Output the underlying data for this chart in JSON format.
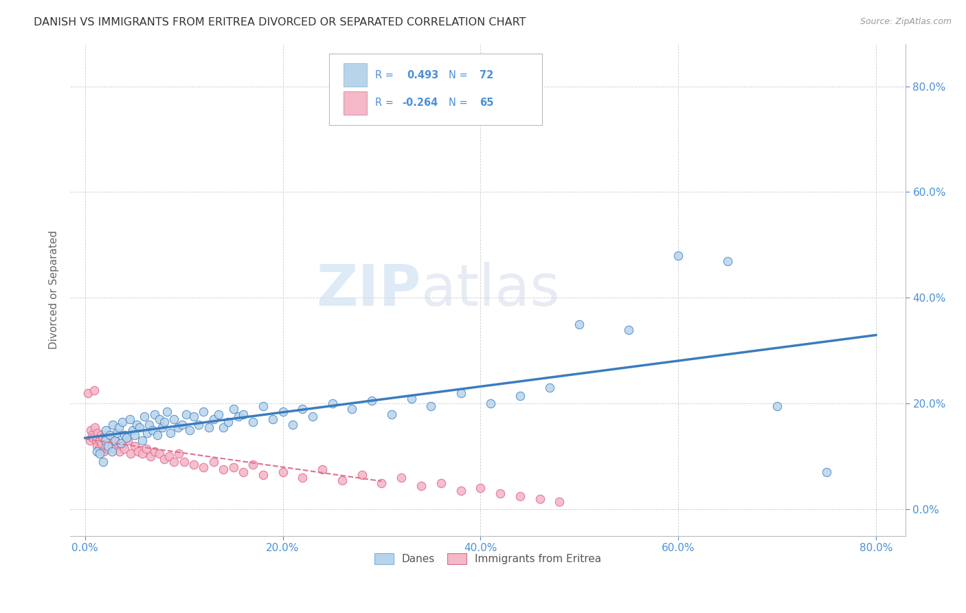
{
  "title": "DANISH VS IMMIGRANTS FROM ERITREA DIVORCED OR SEPARATED CORRELATION CHART",
  "source": "Source: ZipAtlas.com",
  "ylabel": "Divorced or Separated",
  "xlabel_tick_vals": [
    0,
    20,
    40,
    60,
    80
  ],
  "ylabel_tick_vals": [
    0,
    20,
    40,
    60,
    80
  ],
  "xlim": [
    -1.5,
    83
  ],
  "ylim": [
    -5,
    88
  ],
  "danes_R": 0.493,
  "danes_N": 72,
  "eritrea_R": -0.264,
  "eritrea_N": 65,
  "legend_label_danes": "Danes",
  "legend_label_eritrea": "Immigrants from Eritrea",
  "danes_color": "#b8d4eb",
  "danes_line_color": "#3a7cbf",
  "eritrea_color": "#f4b8c8",
  "eritrea_line_color": "#e07090",
  "background_color": "#ffffff",
  "grid_color": "#cccccc",
  "title_color": "#333333",
  "watermark_zip": "ZIP",
  "watermark_atlas": "atlas",
  "danes_x": [
    1.2,
    1.5,
    1.8,
    2.0,
    2.1,
    2.3,
    2.5,
    2.7,
    2.8,
    3.0,
    3.2,
    3.4,
    3.6,
    3.8,
    4.0,
    4.2,
    4.5,
    4.8,
    5.0,
    5.2,
    5.5,
    5.8,
    6.0,
    6.3,
    6.5,
    6.8,
    7.0,
    7.3,
    7.5,
    7.8,
    8.0,
    8.3,
    8.6,
    9.0,
    9.4,
    9.8,
    10.2,
    10.6,
    11.0,
    11.5,
    12.0,
    12.5,
    13.0,
    13.5,
    14.0,
    14.5,
    15.0,
    15.5,
    16.0,
    17.0,
    18.0,
    19.0,
    20.0,
    21.0,
    22.0,
    23.0,
    25.0,
    27.0,
    29.0,
    31.0,
    33.0,
    35.0,
    38.0,
    41.0,
    44.0,
    47.0,
    50.0,
    55.0,
    60.0,
    65.0,
    70.0,
    75.0
  ],
  "danes_y": [
    11.0,
    10.5,
    9.0,
    13.0,
    15.0,
    12.0,
    14.0,
    11.0,
    16.0,
    13.0,
    14.5,
    15.5,
    12.5,
    16.5,
    14.0,
    13.5,
    17.0,
    15.0,
    14.0,
    16.0,
    15.5,
    13.0,
    17.5,
    14.5,
    16.0,
    15.0,
    18.0,
    14.0,
    17.0,
    15.5,
    16.5,
    18.5,
    14.5,
    17.0,
    15.5,
    16.0,
    18.0,
    15.0,
    17.5,
    16.0,
    18.5,
    15.5,
    17.0,
    18.0,
    15.5,
    16.5,
    19.0,
    17.5,
    18.0,
    16.5,
    19.5,
    17.0,
    18.5,
    16.0,
    19.0,
    17.5,
    20.0,
    19.0,
    20.5,
    18.0,
    21.0,
    19.5,
    22.0,
    20.0,
    21.5,
    23.0,
    35.0,
    34.0,
    48.0,
    47.0,
    19.5,
    7.0
  ],
  "eritrea_x": [
    0.3,
    0.5,
    0.6,
    0.7,
    0.8,
    0.9,
    1.0,
    1.1,
    1.2,
    1.3,
    1.4,
    1.5,
    1.6,
    1.7,
    1.8,
    1.9,
    2.0,
    2.1,
    2.2,
    2.3,
    2.5,
    2.7,
    2.9,
    3.1,
    3.3,
    3.5,
    3.8,
    4.0,
    4.3,
    4.6,
    5.0,
    5.4,
    5.8,
    6.2,
    6.6,
    7.0,
    7.5,
    8.0,
    8.5,
    9.0,
    9.5,
    10.0,
    11.0,
    12.0,
    13.0,
    14.0,
    15.0,
    16.0,
    17.0,
    18.0,
    20.0,
    22.0,
    24.0,
    26.0,
    28.0,
    30.0,
    32.0,
    34.0,
    36.0,
    38.0,
    40.0,
    42.0,
    44.0,
    46.0,
    48.0
  ],
  "eritrea_y": [
    22.0,
    13.0,
    15.0,
    14.0,
    13.5,
    22.5,
    15.5,
    13.0,
    12.0,
    14.5,
    11.5,
    13.0,
    14.0,
    12.5,
    13.5,
    11.0,
    14.0,
    12.0,
    13.5,
    11.5,
    13.0,
    12.0,
    11.5,
    13.0,
    12.5,
    11.0,
    12.0,
    11.5,
    13.0,
    10.5,
    12.0,
    11.0,
    10.5,
    11.5,
    10.0,
    11.0,
    10.5,
    9.5,
    10.0,
    9.0,
    10.5,
    9.0,
    8.5,
    8.0,
    9.0,
    7.5,
    8.0,
    7.0,
    8.5,
    6.5,
    7.0,
    6.0,
    7.5,
    5.5,
    6.5,
    5.0,
    6.0,
    4.5,
    5.0,
    3.5,
    4.0,
    3.0,
    2.5,
    2.0,
    1.5
  ]
}
